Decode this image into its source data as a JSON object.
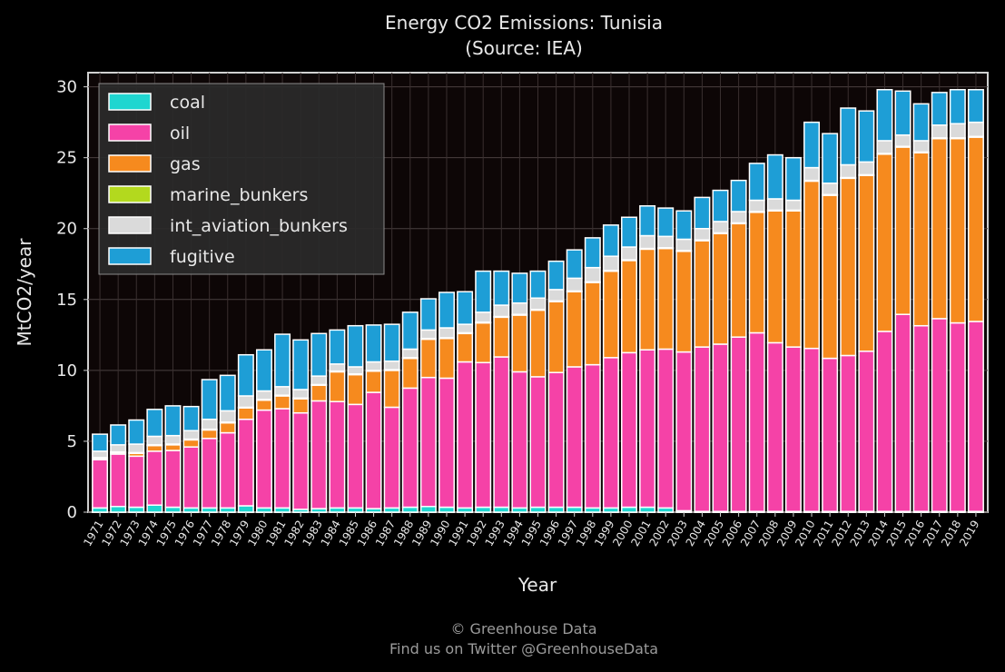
{
  "chart_data": {
    "type": "bar",
    "stacked": true,
    "title": "Energy CO2 Emissions: Tunisia",
    "subtitle": "(Source: IEA)",
    "xlabel": "Year",
    "ylabel": "MtCO2/year",
    "ylim": [
      0,
      31
    ],
    "yticks": [
      0,
      5,
      10,
      15,
      20,
      25,
      30
    ],
    "grid": true,
    "legend_position": "top-left",
    "categories": [
      "1971",
      "1972",
      "1973",
      "1974",
      "1975",
      "1976",
      "1977",
      "1978",
      "1979",
      "1980",
      "1981",
      "1982",
      "1983",
      "1984",
      "1985",
      "1986",
      "1987",
      "1988",
      "1989",
      "1990",
      "1991",
      "1992",
      "1993",
      "1994",
      "1995",
      "1996",
      "1997",
      "1998",
      "1999",
      "2000",
      "2001",
      "2002",
      "2003",
      "2004",
      "2005",
      "2006",
      "2007",
      "2008",
      "2009",
      "2010",
      "2011",
      "2012",
      "2013",
      "2014",
      "2015",
      "2016",
      "2017",
      "2018",
      "2019"
    ],
    "series": [
      {
        "name": "coal",
        "color": "#1fd6d0",
        "values": [
          0.3,
          0.4,
          0.35,
          0.5,
          0.35,
          0.3,
          0.3,
          0.3,
          0.45,
          0.3,
          0.3,
          0.2,
          0.25,
          0.3,
          0.3,
          0.25,
          0.3,
          0.35,
          0.4,
          0.35,
          0.3,
          0.35,
          0.35,
          0.3,
          0.35,
          0.35,
          0.35,
          0.3,
          0.3,
          0.35,
          0.35,
          0.3,
          0.1,
          0.05,
          0.05,
          0.05,
          0.05,
          0.05,
          0.05,
          0.05,
          0.05,
          0.05,
          0.05,
          0.05,
          0.05,
          0.05,
          0.05,
          0.05,
          0.05
        ]
      },
      {
        "name": "oil",
        "color": "#f542a7",
        "values": [
          3.4,
          3.7,
          3.6,
          3.8,
          4.0,
          4.3,
          4.9,
          5.3,
          6.1,
          6.9,
          7.0,
          6.8,
          7.6,
          7.5,
          7.3,
          8.2,
          7.1,
          8.4,
          9.1,
          9.1,
          10.3,
          10.2,
          10.6,
          9.6,
          9.2,
          9.5,
          9.9,
          10.1,
          10.6,
          10.9,
          11.1,
          11.2,
          11.2,
          11.6,
          11.8,
          12.3,
          12.6,
          11.9,
          11.6,
          11.5,
          10.8,
          11.0,
          11.3,
          12.7,
          13.9,
          13.1,
          13.6,
          13.3,
          13.4
        ]
      },
      {
        "name": "gas",
        "color": "#f68a1e",
        "values": [
          0.1,
          0.1,
          0.2,
          0.4,
          0.4,
          0.5,
          0.6,
          0.7,
          0.8,
          0.7,
          0.9,
          1.0,
          1.1,
          2.1,
          2.1,
          1.5,
          2.6,
          2.1,
          2.7,
          2.8,
          2.0,
          2.8,
          2.8,
          4.0,
          4.7,
          5.0,
          5.3,
          5.8,
          6.1,
          6.5,
          7.1,
          7.1,
          7.1,
          7.5,
          7.8,
          8.0,
          8.5,
          9.3,
          9.6,
          11.8,
          11.5,
          12.5,
          12.4,
          12.5,
          11.8,
          12.2,
          12.7,
          13.0,
          13.0
        ]
      },
      {
        "name": "marine_bunkers",
        "color": "#b3d91e",
        "values": [
          0.05,
          0.05,
          0.05,
          0.05,
          0.05,
          0.05,
          0.05,
          0.05,
          0.05,
          0.05,
          0.05,
          0.05,
          0.05,
          0.05,
          0.05,
          0.05,
          0.05,
          0.05,
          0.05,
          0.05,
          0.05,
          0.05,
          0.05,
          0.05,
          0.05,
          0.05,
          0.05,
          0.05,
          0.05,
          0.05,
          0.05,
          0.05,
          0.05,
          0.05,
          0.05,
          0.05,
          0.05,
          0.05,
          0.05,
          0.05,
          0.05,
          0.05,
          0.05,
          0.05,
          0.05,
          0.05,
          0.05,
          0.05,
          0.05
        ]
      },
      {
        "name": "int_aviation_bunkers",
        "color": "#dadada",
        "values": [
          0.45,
          0.5,
          0.6,
          0.6,
          0.6,
          0.6,
          0.7,
          0.8,
          0.8,
          0.6,
          0.6,
          0.6,
          0.6,
          0.5,
          0.5,
          0.6,
          0.6,
          0.6,
          0.6,
          0.7,
          0.6,
          0.7,
          0.8,
          0.8,
          0.8,
          0.8,
          0.9,
          1.0,
          1.0,
          0.9,
          0.9,
          0.8,
          0.8,
          0.8,
          0.8,
          0.8,
          0.8,
          0.8,
          0.7,
          0.9,
          0.8,
          0.9,
          0.9,
          0.9,
          0.8,
          0.8,
          0.9,
          1.0,
          1.0
        ]
      },
      {
        "name": "fugitive",
        "color": "#1e9ed6",
        "values": [
          1.2,
          1.4,
          1.7,
          1.9,
          2.1,
          1.7,
          2.8,
          2.5,
          2.9,
          2.9,
          3.7,
          3.5,
          3.0,
          2.4,
          2.9,
          2.6,
          2.6,
          2.6,
          2.2,
          2.5,
          2.3,
          2.9,
          2.4,
          2.1,
          1.9,
          2.0,
          2.0,
          2.1,
          2.2,
          2.1,
          2.1,
          2.0,
          2.0,
          2.2,
          2.2,
          2.2,
          2.6,
          3.1,
          3.0,
          3.2,
          3.5,
          4.0,
          3.6,
          3.6,
          3.1,
          2.6,
          2.3,
          2.4,
          2.3
        ]
      }
    ]
  },
  "footer": {
    "line1": "© Greenhouse Data",
    "line2": "Find us on Twitter @GreenhouseData"
  }
}
